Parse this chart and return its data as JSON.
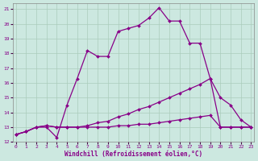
{
  "xlabel": "Windchill (Refroidissement éolien,°C)",
  "xlim": [
    -0.3,
    23.3
  ],
  "ylim": [
    12,
    21.4
  ],
  "xticks": [
    0,
    1,
    2,
    3,
    4,
    5,
    6,
    7,
    8,
    9,
    10,
    11,
    12,
    13,
    14,
    15,
    16,
    17,
    18,
    19,
    20,
    21,
    22,
    23
  ],
  "yticks": [
    12,
    13,
    14,
    15,
    16,
    17,
    18,
    19,
    20,
    21
  ],
  "background_color": "#cce8e0",
  "grid_color": "#aaccbb",
  "line_color": "#880088",
  "line1_x": [
    0,
    1,
    2,
    3,
    4,
    5,
    6,
    7,
    8,
    9,
    10,
    11,
    12,
    13,
    14,
    15,
    16,
    17,
    18,
    19,
    20,
    21,
    22,
    23
  ],
  "line1_y": [
    12.5,
    12.7,
    13.0,
    13.0,
    12.3,
    14.5,
    16.3,
    18.2,
    17.8,
    17.8,
    19.5,
    19.7,
    19.9,
    20.4,
    21.1,
    20.2,
    20.2,
    18.7,
    18.7,
    16.3,
    13.0,
    13.0,
    13.0,
    13.0
  ],
  "line2_x": [
    0,
    1,
    2,
    3,
    4,
    5,
    6,
    7,
    8,
    9,
    10,
    11,
    12,
    13,
    14,
    15,
    16,
    17,
    18,
    19,
    20,
    21,
    22,
    23
  ],
  "line2_y": [
    12.5,
    12.7,
    13.0,
    13.1,
    13.0,
    13.0,
    13.0,
    13.1,
    13.3,
    13.4,
    13.7,
    13.9,
    14.2,
    14.4,
    14.7,
    15.0,
    15.3,
    15.6,
    15.9,
    16.3,
    15.0,
    14.5,
    13.5,
    13.0
  ],
  "line3_x": [
    0,
    1,
    2,
    3,
    4,
    5,
    6,
    7,
    8,
    9,
    10,
    11,
    12,
    13,
    14,
    15,
    16,
    17,
    18,
    19,
    20,
    21,
    22,
    23
  ],
  "line3_y": [
    12.5,
    12.7,
    13.0,
    13.1,
    13.0,
    13.0,
    13.0,
    13.0,
    13.0,
    13.0,
    13.1,
    13.1,
    13.2,
    13.2,
    13.3,
    13.4,
    13.5,
    13.6,
    13.7,
    13.8,
    13.0,
    13.0,
    13.0,
    13.0
  ]
}
